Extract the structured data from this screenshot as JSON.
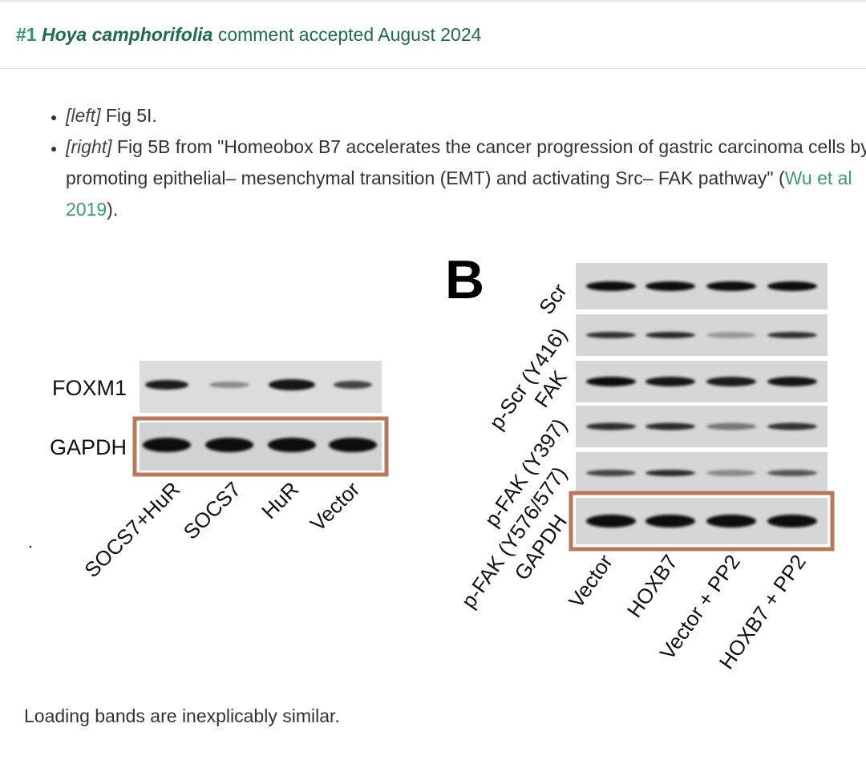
{
  "header": {
    "number": "#1",
    "species": "Hoya camphorifolia",
    "status": "comment accepted August 2024"
  },
  "bullets": [
    {
      "tag": "[left]",
      "text": " Fig 5I."
    },
    {
      "tag": "[right]",
      "text_before": " Fig 5B from \"Homeobox B7 accelerates the cancer progression of gastric carcinoma cells by promoting epithelial– mesenchymal transition (EMT) and activating Src– FAK pathway\" (",
      "link": "Wu et al 2019",
      "text_after": ")."
    }
  ],
  "figure_left": {
    "rows": [
      "FOXM1",
      "GAPDH"
    ],
    "lanes": [
      "SOCS7+HuR",
      "SOCS7",
      "HuR",
      "Vector"
    ],
    "highlight_color": "#b9785a"
  },
  "figure_right": {
    "panel_letter": "B",
    "rows": [
      "Scr",
      "p-Scr (Y416)",
      "FAK",
      "p-FAK (Y397)",
      "p-FAK (Y576/577)",
      "GAPDH"
    ],
    "lanes": [
      "Vector",
      "HOXB7",
      "Vector + PP2",
      "HOXB7 + PP2"
    ],
    "highlight_color": "#b9785a"
  },
  "footer": {
    "note": "Loading bands are inexplicably similar."
  }
}
